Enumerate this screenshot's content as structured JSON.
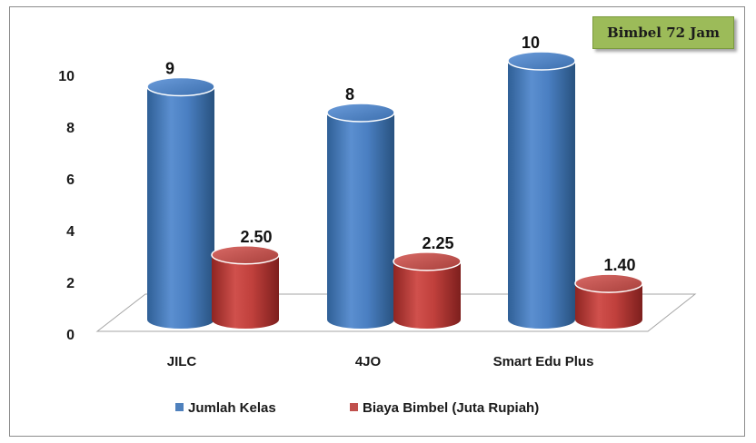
{
  "chart_data": {
    "type": "bar",
    "title": "Bimbel 72 Jam",
    "categories": [
      "JILC",
      "4JO",
      "Smart Edu Plus"
    ],
    "series": [
      {
        "name": "Jumlah Kelas",
        "values": [
          9,
          8,
          10
        ],
        "labels": [
          "9",
          "8",
          "10"
        ],
        "color": "#4f81bd"
      },
      {
        "name": "Biaya Bimbel (Juta Rupiah)",
        "values": [
          2.5,
          2.25,
          1.4
        ],
        "labels": [
          "2.50",
          "2.25",
          "1.40"
        ],
        "color": "#c0504d"
      }
    ],
    "y_ticks": [
      "0",
      "2",
      "4",
      "6",
      "8",
      "10"
    ],
    "ylim": [
      0,
      10
    ],
    "grid": false,
    "legend_position": "bottom",
    "style": "3d-cylinder"
  }
}
